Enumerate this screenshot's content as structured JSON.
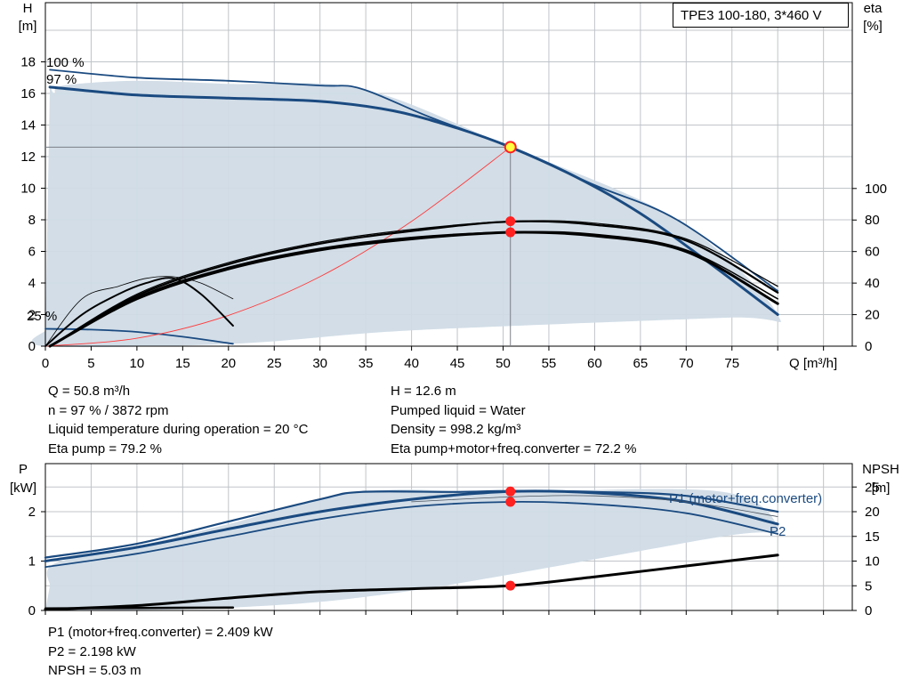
{
  "pump_model": "TPE3 100-180, 3*460 V",
  "colors": {
    "curve_blue": "#1a4a80",
    "area_fill": "#d0dbe6",
    "grid": "#c0c4c8",
    "efficiency": "#000000",
    "system_curve": "#ff3b3b",
    "op_point_ring": "#ff2020",
    "op_point_fill": "#ffff40"
  },
  "chart_data": [
    {
      "type": "line",
      "ylabel": [
        "H",
        "[m]"
      ],
      "y2label": [
        "eta",
        "[%]"
      ],
      "xlabel": "Q [m³/h]",
      "xlim": [
        0,
        80
      ],
      "ylim": [
        0,
        18
      ],
      "x_ticks": [
        "0",
        "5",
        "10",
        "15",
        "20",
        "25",
        "30",
        "35",
        "40",
        "45",
        "50",
        "55",
        "60",
        "65",
        "70",
        "75"
      ],
      "y_ticks": [
        "0",
        "2",
        "4",
        "6",
        "8",
        "10",
        "12",
        "14",
        "16",
        "18"
      ],
      "y2_ticks": [
        "0",
        "20",
        "40",
        "60",
        "80",
        "100"
      ],
      "y2lim": [
        0,
        100
      ],
      "grid": true,
      "speed_labels": [
        {
          "text": "100 %",
          "at": [
            0.5,
            17.5
          ]
        },
        {
          "text": "97 %",
          "at": [
            0.5,
            16.4
          ]
        },
        {
          "text": "25 %",
          "at": [
            0.5,
            1.1
          ]
        }
      ],
      "operating_area": [
        [
          0.5,
          16.5
        ],
        [
          1,
          16
        ],
        [
          2,
          16.5
        ],
        [
          10,
          16.8
        ],
        [
          20,
          16.6
        ],
        [
          34.5,
          16.3
        ],
        [
          50,
          12.8
        ],
        [
          69,
          8
        ],
        [
          80,
          2
        ],
        [
          74,
          1.8
        ],
        [
          40,
          1
        ],
        [
          20.5,
          0.15
        ],
        [
          0,
          0
        ],
        [
          0,
          1
        ]
      ],
      "series": [
        {
          "name": "100 %",
          "role": "head",
          "x": [
            0.5,
            10,
            20,
            30,
            34.5,
            42,
            50.8,
            60,
            69,
            80
          ],
          "y": [
            17.5,
            17,
            16.8,
            16.5,
            16.3,
            14.5,
            12.6,
            10.2,
            8,
            3.5
          ]
        },
        {
          "name": "97 %",
          "role": "head",
          "x": [
            0.5,
            10,
            20,
            30,
            38,
            45,
            50.8,
            58,
            65,
            72,
            80
          ],
          "y": [
            16.4,
            15.9,
            15.7,
            15.5,
            14.9,
            13.8,
            12.6,
            10.7,
            8.4,
            5.5,
            2
          ]
        },
        {
          "name": "25 %",
          "role": "head",
          "x": [
            0,
            5,
            10,
            15,
            20.5
          ],
          "y": [
            1.1,
            1.05,
            0.9,
            0.6,
            0.15
          ]
        },
        {
          "role": "system",
          "x": [
            0,
            10,
            20,
            30,
            40,
            50.8
          ],
          "y": [
            0,
            0.5,
            1.95,
            4.4,
            7.9,
            12.6
          ]
        },
        {
          "role": "eta_pump_100",
          "x": [
            0.5,
            10,
            20,
            30,
            40,
            50.8,
            60,
            70,
            80
          ],
          "y": [
            0,
            33,
            53,
            66,
            74,
            79.2,
            78,
            68,
            38
          ]
        },
        {
          "role": "eta_pump_97",
          "x": [
            0.5,
            10,
            20,
            30,
            40,
            50.8,
            60,
            70,
            80
          ],
          "y": [
            0,
            32,
            52,
            65,
            73,
            79,
            77,
            67,
            34
          ]
        },
        {
          "role": "eta_total_100",
          "x": [
            0.5,
            10,
            20,
            30,
            40,
            50.8,
            60,
            70,
            80
          ],
          "y": [
            0,
            31,
            50,
            62,
            69,
            72.4,
            71,
            61,
            30
          ]
        },
        {
          "role": "eta_total_97",
          "x": [
            0.5,
            10,
            20,
            30,
            40,
            50.8,
            60,
            70,
            80
          ],
          "y": [
            0,
            30,
            49,
            61,
            68,
            72.2,
            70,
            60,
            27
          ]
        },
        {
          "role": "eta_pump_25",
          "x": [
            0,
            4,
            8,
            11,
            14,
            17,
            20.5
          ],
          "y": [
            0,
            30,
            38,
            43,
            44,
            40,
            30
          ]
        },
        {
          "role": "eta_total_25",
          "x": [
            0,
            4,
            8,
            11,
            14,
            17,
            20.5
          ],
          "y": [
            0,
            20,
            33,
            40,
            43,
            33,
            13
          ]
        }
      ],
      "operating_point": {
        "x": 50.8,
        "y": 12.6,
        "eta_pump": 79.2,
        "eta_total": 72.2
      }
    },
    {
      "type": "line",
      "ylabel": [
        "P",
        "[kW]"
      ],
      "y2label": [
        "NPSH",
        "[m]"
      ],
      "xlim": [
        0,
        80
      ],
      "ylim": [
        0,
        2.5
      ],
      "y_ticks": [
        "0",
        "1",
        "2"
      ],
      "y2_ticks": [
        "0",
        "5",
        "10",
        "15",
        "20",
        "25"
      ],
      "y2lim": [
        0,
        27.5
      ],
      "grid": true,
      "operating_area": [
        [
          0.5,
          0.5
        ],
        [
          1,
          0.95
        ],
        [
          10,
          1.3
        ],
        [
          20,
          1.75
        ],
        [
          34.5,
          2.4
        ],
        [
          50,
          2.4
        ],
        [
          74,
          2.4
        ],
        [
          80,
          1.6
        ],
        [
          74,
          1.5
        ],
        [
          40,
          0.4
        ],
        [
          20.5,
          0.06
        ],
        [
          0,
          0
        ]
      ],
      "series": [
        {
          "name": "P1 (motor+freq.converter)",
          "role": "p1_100",
          "x": [
            0,
            10,
            20,
            30,
            34.5,
            45,
            50.8,
            60,
            70,
            80
          ],
          "y": [
            1.07,
            1.35,
            1.8,
            2.25,
            2.4,
            2.4,
            2.42,
            2.4,
            2.32,
            2.0
          ]
        },
        {
          "role": "p1_97",
          "x": [
            0,
            10,
            20,
            30,
            40,
            50.8,
            60,
            70,
            80
          ],
          "y": [
            1.0,
            1.28,
            1.65,
            2.0,
            2.25,
            2.409,
            2.38,
            2.2,
            1.75
          ]
        },
        {
          "name": "P2",
          "role": "p2",
          "x": [
            0,
            10,
            20,
            30,
            40,
            50.8,
            60,
            70,
            80
          ],
          "y": [
            0.88,
            1.15,
            1.5,
            1.85,
            2.1,
            2.198,
            2.15,
            1.97,
            1.55
          ]
        },
        {
          "role": "p2_thin",
          "x": [
            40,
            50.8,
            60,
            70,
            80
          ],
          "y": [
            2.2,
            2.3,
            2.32,
            2.2,
            1.9
          ]
        },
        {
          "role": "npsh",
          "x": [
            0,
            10,
            20,
            30,
            40,
            50.8,
            60,
            70,
            80
          ],
          "y2": [
            0.2,
            1.0,
            2.5,
            3.8,
            4.4,
            5.03,
            6.8,
            9.0,
            11.2
          ]
        },
        {
          "role": "p_25",
          "x": [
            0,
            10,
            20.5
          ],
          "y": [
            0.04,
            0.05,
            0.06
          ]
        }
      ],
      "operating_points": [
        {
          "x": 50.8,
          "y": 2.409
        },
        {
          "x": 50.8,
          "y": 2.198
        },
        {
          "x": 50.8,
          "y2": 5.03
        }
      ]
    }
  ],
  "info_top_left": [
    "Q = 50.8 m³/h",
    "n = 97 % / 3872 rpm",
    "Liquid temperature during operation = 20 °C",
    "Eta pump = 79.2 %"
  ],
  "info_top_right": [
    "H = 12.6 m",
    "Pumped liquid = Water",
    "Density = 998.2 kg/m³",
    "Eta pump+motor+freq.converter = 72.2 %"
  ],
  "info_bottom": [
    "P1 (motor+freq.converter) = 2.409 kW",
    "P2 = 2.198 kW",
    "NPSH = 5.03 m"
  ]
}
